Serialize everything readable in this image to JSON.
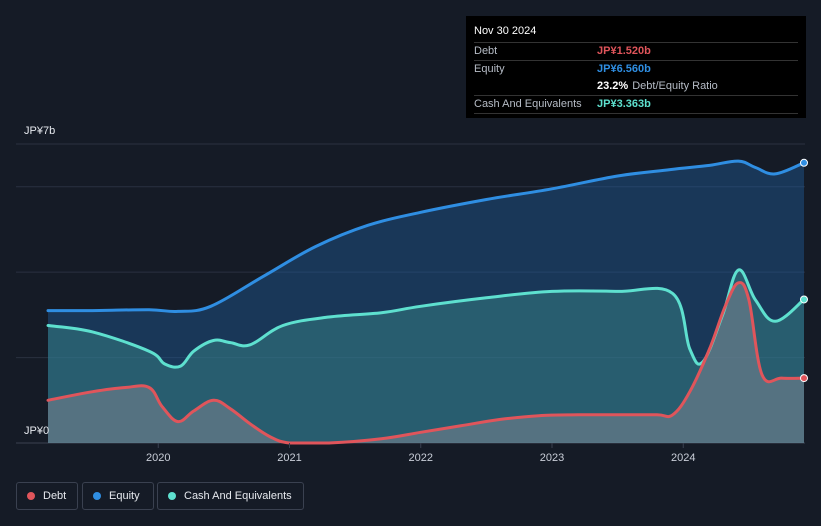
{
  "chart_data": {
    "type": "area",
    "title": "",
    "xlabel": "",
    "ylabel": "",
    "y_unit": "JP¥ billions",
    "ylim": [
      0,
      7
    ],
    "y_tick_labels": [
      "JP¥0",
      "JP¥7b"
    ],
    "x_tick_labels": [
      "2020",
      "2021",
      "2022",
      "2023",
      "2024"
    ],
    "xlim": [
      2019.16,
      2024.92
    ],
    "grid": true,
    "legend_position": "bottom-left",
    "series": [
      {
        "name": "Debt",
        "color": "#e0555b",
        "x": [
          2019.16,
          2019.5,
          2019.75,
          2019.93,
          2020.03,
          2020.15,
          2020.27,
          2020.42,
          2020.55,
          2020.7,
          2020.85,
          2021.0,
          2021.3,
          2021.7,
          2022.0,
          2022.3,
          2022.6,
          2022.9,
          2023.2,
          2023.5,
          2023.8,
          2023.92,
          2024.05,
          2024.2,
          2024.32,
          2024.42,
          2024.5,
          2024.6,
          2024.75,
          2024.92
        ],
        "values": [
          1.0,
          1.2,
          1.3,
          1.3,
          0.85,
          0.5,
          0.75,
          1.0,
          0.8,
          0.45,
          0.15,
          0.0,
          0.0,
          0.1,
          0.25,
          0.4,
          0.55,
          0.64,
          0.66,
          0.66,
          0.66,
          0.66,
          1.2,
          2.2,
          3.2,
          3.75,
          3.35,
          1.6,
          1.52,
          1.52
        ]
      },
      {
        "name": "Equity",
        "color": "#2f8ee2",
        "x": [
          2019.16,
          2019.5,
          2019.93,
          2020.15,
          2020.4,
          2020.8,
          2021.2,
          2021.6,
          2022.0,
          2022.5,
          2023.0,
          2023.5,
          2023.9,
          2024.2,
          2024.42,
          2024.55,
          2024.7,
          2024.92
        ],
        "values": [
          3.1,
          3.1,
          3.12,
          3.08,
          3.2,
          3.9,
          4.6,
          5.1,
          5.4,
          5.7,
          5.95,
          6.25,
          6.4,
          6.5,
          6.6,
          6.45,
          6.3,
          6.56
        ]
      },
      {
        "name": "Cash And Equivalents",
        "color": "#5ee0cf",
        "x": [
          2019.16,
          2019.5,
          2019.93,
          2020.05,
          2020.17,
          2020.27,
          2020.42,
          2020.55,
          2020.7,
          2020.95,
          2021.3,
          2021.7,
          2022.0,
          2022.5,
          2023.0,
          2023.5,
          2023.92,
          2024.05,
          2024.15,
          2024.3,
          2024.42,
          2024.55,
          2024.7,
          2024.92
        ],
        "values": [
          2.75,
          2.6,
          2.15,
          1.85,
          1.8,
          2.15,
          2.4,
          2.35,
          2.3,
          2.75,
          2.95,
          3.05,
          3.2,
          3.4,
          3.55,
          3.55,
          3.5,
          2.2,
          1.9,
          3.0,
          4.05,
          3.35,
          2.85,
          3.36
        ]
      }
    ],
    "tooltip": {
      "date": "Nov 30 2024",
      "debt_label": "Debt",
      "debt_value": "JP¥1.520b",
      "equity_label": "Equity",
      "equity_value": "JP¥6.560b",
      "ratio_value": "23.2%",
      "ratio_label": "Debt/Equity Ratio",
      "cash_label": "Cash And Equivalents",
      "cash_value": "JP¥3.363b"
    }
  },
  "legend": {
    "items": [
      {
        "label": "Debt",
        "color": "#e0555b"
      },
      {
        "label": "Equity",
        "color": "#2f8ee2"
      },
      {
        "label": "Cash And Equivalents",
        "color": "#5ee0cf"
      }
    ]
  }
}
